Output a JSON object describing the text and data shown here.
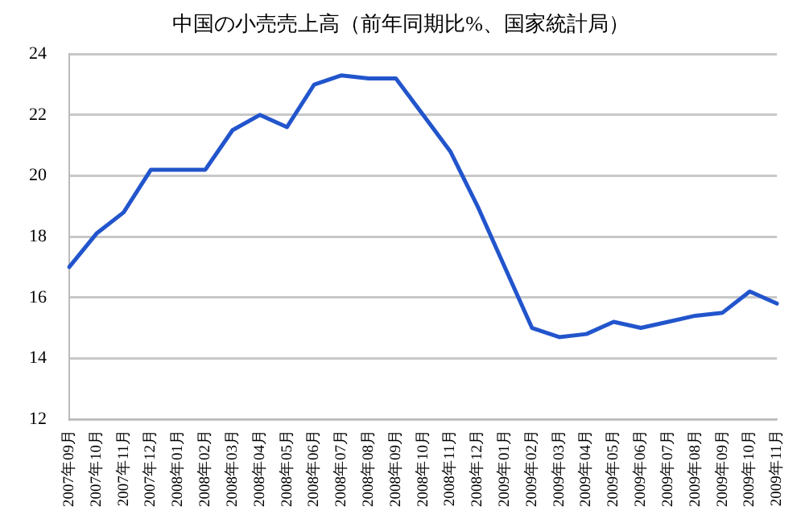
{
  "chart_data": {
    "type": "line",
    "title": "中国の小売売上高（前年同期比%、国家統計局）",
    "categories": [
      "2007年09月",
      "2007年10月",
      "2007年11月",
      "2007年12月",
      "2008年01月",
      "2008年02月",
      "2008年03月",
      "2008年04月",
      "2008年05月",
      "2008年06月",
      "2008年07月",
      "2008年08月",
      "2008年09月",
      "2008年10月",
      "2008年11月",
      "2008年12月",
      "2009年01月",
      "2009年02月",
      "2009年03月",
      "2009年04月",
      "2009年05月",
      "2009年06月",
      "2009年07月",
      "2009年08月",
      "2009年09月",
      "2009年10月",
      "2009年11月"
    ],
    "series": [
      {
        "color": "#2255cc",
        "values": [
          17.0,
          18.1,
          18.8,
          20.2,
          20.2,
          20.2,
          21.5,
          22.0,
          21.6,
          23.0,
          23.3,
          23.2,
          23.2,
          22.0,
          20.8,
          19.0,
          17.0,
          15.0,
          14.7,
          14.8,
          15.2,
          15.0,
          15.2,
          15.4,
          15.5,
          16.2,
          15.8
        ]
      }
    ],
    "ylim": [
      12,
      24
    ],
    "yticks": [
      12,
      14,
      16,
      18,
      20,
      22,
      24
    ],
    "grid": "y",
    "legend": false,
    "marker": "none",
    "line_style": "solid"
  }
}
